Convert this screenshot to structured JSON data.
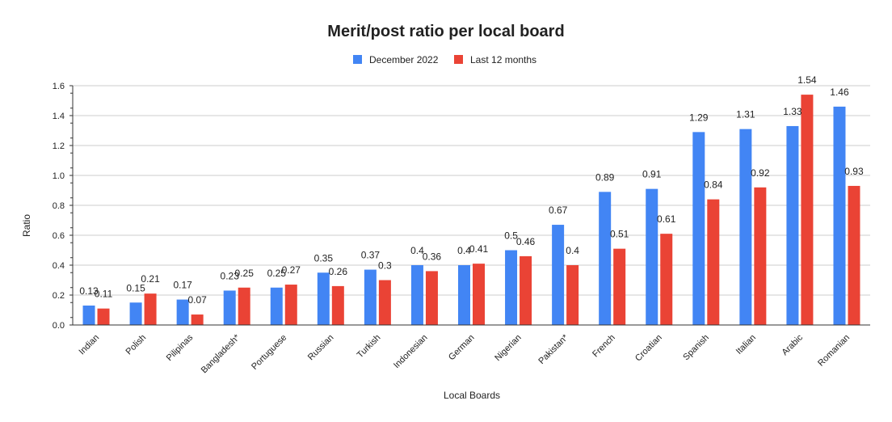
{
  "chart_data": {
    "type": "bar",
    "title": "Merit/post ratio per local board",
    "xlabel": "Local Boards",
    "ylabel": "Ratio",
    "ylim": [
      0,
      1.6
    ],
    "yticks": [
      "0.0",
      "0.2",
      "0.4",
      "0.6",
      "0.8",
      "1.0",
      "1.2",
      "1.4",
      "1.6"
    ],
    "grid": true,
    "legend_position": "top",
    "categories": [
      "Indian",
      "Polish",
      "Pilipinas",
      "Bangladesh*",
      "Portuguese",
      "Russian",
      "Turkish",
      "Indonesian",
      "German",
      "Nigerian",
      "Pakistan*",
      "French",
      "Croatian",
      "Spanish",
      "Italian",
      "Arabic",
      "Romanian"
    ],
    "series": [
      {
        "name": "December 2022",
        "color": "#4285f4",
        "values": [
          0.13,
          0.15,
          0.17,
          0.23,
          0.25,
          0.35,
          0.37,
          0.4,
          0.4,
          0.5,
          0.67,
          0.89,
          0.91,
          1.29,
          1.31,
          1.33,
          1.46
        ],
        "labels": [
          "0.13",
          "0.15",
          "0.17",
          "0.23",
          "0.25",
          "0.35",
          "0.37",
          "0.4",
          "0.4",
          "0.5",
          "0.67",
          "0.89",
          "0.91",
          "1.29",
          "1.31",
          "1.33",
          "1.46"
        ]
      },
      {
        "name": "Last 12 months",
        "color": "#ea4335",
        "values": [
          0.11,
          0.21,
          0.07,
          0.25,
          0.27,
          0.26,
          0.3,
          0.36,
          0.41,
          0.46,
          0.4,
          0.51,
          0.61,
          0.84,
          0.92,
          1.54,
          0.93
        ],
        "labels": [
          "0.11",
          "0.21",
          "0.07",
          "0.25",
          "0.27",
          "0.26",
          "0.3",
          "0.36",
          "0.41",
          "0.46",
          "0.4",
          "0.51",
          "0.61",
          "0.84",
          "0.92",
          "1.54",
          "0.93"
        ]
      }
    ]
  }
}
